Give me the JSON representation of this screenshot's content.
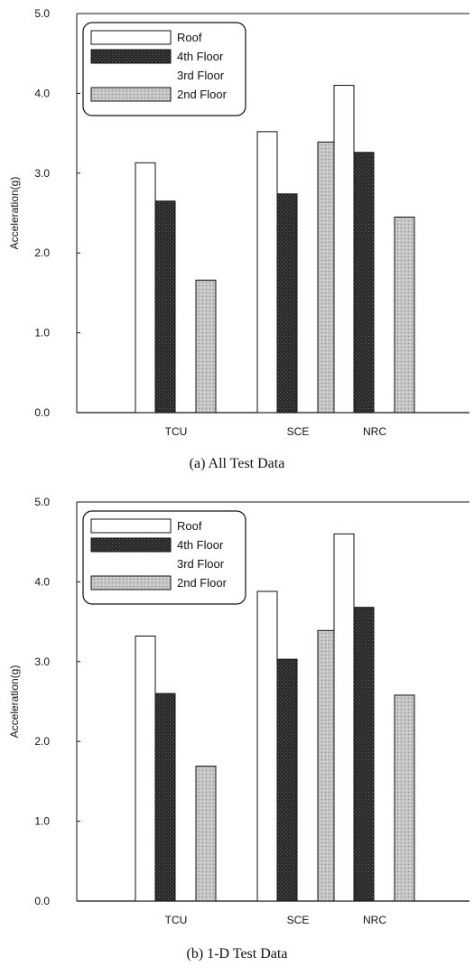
{
  "colors": {
    "roof": "#ffffff",
    "floor4": "#2a2a2a",
    "floor3": "#ffffff",
    "floor2": "#c4c4c4",
    "stroke": "#111111"
  },
  "chart_data": [
    {
      "type": "bar",
      "caption": "(a) All Test Data",
      "ylabel": "Acceleration(g)",
      "xlabel": "",
      "ylim": [
        0,
        5
      ],
      "yticks": [
        "0.0",
        "1.0",
        "2.0",
        "3.0",
        "4.0",
        "5.0"
      ],
      "categories": [
        "TCU",
        "SCE",
        "NRC"
      ],
      "legend_position": "top-left",
      "series": [
        {
          "name": "Roof",
          "key": "roof",
          "values": [
            3.13,
            3.52,
            4.1
          ]
        },
        {
          "name": "4th Floor",
          "key": "floor4",
          "values": [
            2.65,
            2.74,
            3.26
          ]
        },
        {
          "name": "3rd Floor",
          "key": "floor3",
          "values": [
            0,
            0,
            0
          ]
        },
        {
          "name": "2nd Floor",
          "key": "floor2",
          "values": [
            1.66,
            3.39,
            2.45
          ]
        }
      ]
    },
    {
      "type": "bar",
      "caption": "(b) 1-D Test Data",
      "ylabel": "Acceleration(g)",
      "xlabel": "",
      "ylim": [
        0,
        5
      ],
      "yticks": [
        "0.0",
        "1.0",
        "2.0",
        "3.0",
        "4.0",
        "5.0"
      ],
      "categories": [
        "TCU",
        "SCE",
        "NRC"
      ],
      "legend_position": "top-left",
      "series": [
        {
          "name": "Roof",
          "key": "roof",
          "values": [
            3.32,
            3.88,
            4.6
          ]
        },
        {
          "name": "4th Floor",
          "key": "floor4",
          "values": [
            2.6,
            3.03,
            3.68
          ]
        },
        {
          "name": "3rd Floor",
          "key": "floor3",
          "values": [
            0,
            0,
            0
          ]
        },
        {
          "name": "2nd Floor",
          "key": "floor2",
          "values": [
            1.69,
            3.39,
            2.58
          ]
        }
      ]
    }
  ]
}
